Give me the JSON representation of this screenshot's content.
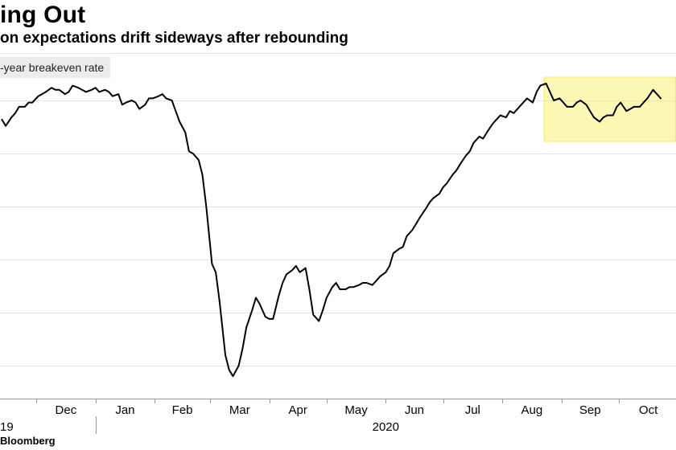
{
  "title": "ing Out",
  "subtitle": "on expectations drift sideways after rebounding",
  "legend": "-year breakeven rate",
  "source": "Bloomberg",
  "chart_data": {
    "type": "line",
    "title": "ing Out",
    "subtitle": "on expectations drift sideways after rebounding",
    "series": [
      {
        "name": "-year breakeven rate",
        "color": "#000000",
        "points": [
          [
            "2019-11-13",
            1.66
          ],
          [
            "2019-11-15",
            1.63
          ],
          [
            "2019-11-18",
            1.67
          ],
          [
            "2019-11-20",
            1.69
          ],
          [
            "2019-11-22",
            1.72
          ],
          [
            "2019-11-25",
            1.72
          ],
          [
            "2019-11-27",
            1.74
          ],
          [
            "2019-11-29",
            1.74
          ],
          [
            "2019-12-02",
            1.77
          ],
          [
            "2019-12-04",
            1.78
          ],
          [
            "2019-12-06",
            1.79
          ],
          [
            "2019-12-09",
            1.81
          ],
          [
            "2019-12-11",
            1.8
          ],
          [
            "2019-12-13",
            1.8
          ],
          [
            "2019-12-16",
            1.78
          ],
          [
            "2019-12-18",
            1.79
          ],
          [
            "2019-12-20",
            1.82
          ],
          [
            "2019-12-23",
            1.81
          ],
          [
            "2019-12-25",
            1.8
          ],
          [
            "2019-12-27",
            1.79
          ],
          [
            "2019-12-30",
            1.8
          ],
          [
            "2020-01-01",
            1.81
          ],
          [
            "2020-01-03",
            1.79
          ],
          [
            "2020-01-06",
            1.8
          ],
          [
            "2020-01-08",
            1.79
          ],
          [
            "2020-01-10",
            1.77
          ],
          [
            "2020-01-13",
            1.78
          ],
          [
            "2020-01-15",
            1.73
          ],
          [
            "2020-01-17",
            1.74
          ],
          [
            "2020-01-20",
            1.75
          ],
          [
            "2020-01-22",
            1.74
          ],
          [
            "2020-01-24",
            1.71
          ],
          [
            "2020-01-27",
            1.73
          ],
          [
            "2020-01-29",
            1.76
          ],
          [
            "2020-01-31",
            1.76
          ],
          [
            "2020-02-03",
            1.77
          ],
          [
            "2020-02-05",
            1.78
          ],
          [
            "2020-02-07",
            1.76
          ],
          [
            "2020-02-10",
            1.75
          ],
          [
            "2020-02-12",
            1.7
          ],
          [
            "2020-02-14",
            1.65
          ],
          [
            "2020-02-17",
            1.6
          ],
          [
            "2020-02-19",
            1.51
          ],
          [
            "2020-02-21",
            1.5
          ],
          [
            "2020-02-24",
            1.47
          ],
          [
            "2020-02-26",
            1.4
          ],
          [
            "2020-02-28",
            1.25
          ],
          [
            "2020-03-02",
            0.98
          ],
          [
            "2020-03-04",
            0.94
          ],
          [
            "2020-03-06",
            0.8
          ],
          [
            "2020-03-09",
            0.55
          ],
          [
            "2020-03-11",
            0.48
          ],
          [
            "2020-03-13",
            0.45
          ],
          [
            "2020-03-16",
            0.5
          ],
          [
            "2020-03-18",
            0.58
          ],
          [
            "2020-03-20",
            0.68
          ],
          [
            "2020-03-23",
            0.76
          ],
          [
            "2020-03-25",
            0.82
          ],
          [
            "2020-03-27",
            0.79
          ],
          [
            "2020-03-30",
            0.73
          ],
          [
            "2020-04-01",
            0.72
          ],
          [
            "2020-04-03",
            0.72
          ],
          [
            "2020-04-06",
            0.83
          ],
          [
            "2020-04-08",
            0.89
          ],
          [
            "2020-04-10",
            0.93
          ],
          [
            "2020-04-13",
            0.95
          ],
          [
            "2020-04-15",
            0.97
          ],
          [
            "2020-04-17",
            0.94
          ],
          [
            "2020-04-20",
            0.96
          ],
          [
            "2020-04-22",
            0.86
          ],
          [
            "2020-04-24",
            0.74
          ],
          [
            "2020-04-27",
            0.71
          ],
          [
            "2020-04-29",
            0.76
          ],
          [
            "2020-05-01",
            0.82
          ],
          [
            "2020-05-04",
            0.87
          ],
          [
            "2020-05-06",
            0.89
          ],
          [
            "2020-05-08",
            0.86
          ],
          [
            "2020-05-11",
            0.86
          ],
          [
            "2020-05-13",
            0.87
          ],
          [
            "2020-05-15",
            0.87
          ],
          [
            "2020-05-18",
            0.88
          ],
          [
            "2020-05-20",
            0.89
          ],
          [
            "2020-05-22",
            0.89
          ],
          [
            "2020-05-25",
            0.88
          ],
          [
            "2020-05-27",
            0.9
          ],
          [
            "2020-05-29",
            0.92
          ],
          [
            "2020-06-01",
            0.94
          ],
          [
            "2020-06-03",
            0.97
          ],
          [
            "2020-06-05",
            1.03
          ],
          [
            "2020-06-08",
            1.05
          ],
          [
            "2020-06-10",
            1.06
          ],
          [
            "2020-06-12",
            1.11
          ],
          [
            "2020-06-15",
            1.14
          ],
          [
            "2020-06-17",
            1.17
          ],
          [
            "2020-06-19",
            1.2
          ],
          [
            "2020-06-22",
            1.24
          ],
          [
            "2020-06-24",
            1.27
          ],
          [
            "2020-06-26",
            1.29
          ],
          [
            "2020-06-29",
            1.31
          ],
          [
            "2020-07-01",
            1.34
          ],
          [
            "2020-07-03",
            1.36
          ],
          [
            "2020-07-06",
            1.4
          ],
          [
            "2020-07-08",
            1.42
          ],
          [
            "2020-07-10",
            1.45
          ],
          [
            "2020-07-13",
            1.49
          ],
          [
            "2020-07-15",
            1.51
          ],
          [
            "2020-07-17",
            1.55
          ],
          [
            "2020-07-20",
            1.58
          ],
          [
            "2020-07-22",
            1.57
          ],
          [
            "2020-07-24",
            1.6
          ],
          [
            "2020-07-27",
            1.64
          ],
          [
            "2020-07-29",
            1.66
          ],
          [
            "2020-07-31",
            1.68
          ],
          [
            "2020-08-03",
            1.67
          ],
          [
            "2020-08-05",
            1.7
          ],
          [
            "2020-08-07",
            1.69
          ],
          [
            "2020-08-10",
            1.72
          ],
          [
            "2020-08-12",
            1.74
          ],
          [
            "2020-08-14",
            1.76
          ],
          [
            "2020-08-17",
            1.74
          ],
          [
            "2020-08-19",
            1.79
          ],
          [
            "2020-08-21",
            1.82
          ],
          [
            "2020-08-24",
            1.83
          ],
          [
            "2020-08-26",
            1.79
          ],
          [
            "2020-08-28",
            1.75
          ],
          [
            "2020-08-31",
            1.76
          ],
          [
            "2020-09-02",
            1.74
          ],
          [
            "2020-09-04",
            1.72
          ],
          [
            "2020-09-07",
            1.72
          ],
          [
            "2020-09-09",
            1.74
          ],
          [
            "2020-09-11",
            1.75
          ],
          [
            "2020-09-14",
            1.73
          ],
          [
            "2020-09-16",
            1.7
          ],
          [
            "2020-09-18",
            1.67
          ],
          [
            "2020-09-21",
            1.65
          ],
          [
            "2020-09-23",
            1.67
          ],
          [
            "2020-09-25",
            1.68
          ],
          [
            "2020-09-28",
            1.68
          ],
          [
            "2020-09-30",
            1.72
          ],
          [
            "2020-10-02",
            1.74
          ],
          [
            "2020-10-05",
            1.7
          ],
          [
            "2020-10-07",
            1.71
          ],
          [
            "2020-10-09",
            1.72
          ],
          [
            "2020-10-12",
            1.72
          ],
          [
            "2020-10-14",
            1.74
          ],
          [
            "2020-10-16",
            1.76
          ],
          [
            "2020-10-19",
            1.8
          ],
          [
            "2020-10-21",
            1.78
          ],
          [
            "2020-10-23",
            1.76
          ]
        ]
      }
    ],
    "x_tick_labels": [
      "Dec",
      "Jan",
      "Feb",
      "Mar",
      "Apr",
      "May",
      "Jun",
      "Jul",
      "Aug",
      "Sep",
      "Oct"
    ],
    "x_year_labels": [
      "19",
      "2020"
    ],
    "highlight": {
      "from": "2020-08-23",
      "to": "2020-10-31",
      "color": "#fbf7b4",
      "border": "#f3e86c"
    },
    "grid": "horizontal",
    "gridline_values": [
      0.5,
      0.75,
      1.0,
      1.25,
      1.5,
      1.75
    ],
    "x_range": [
      "2019-11-12",
      "2020-10-31"
    ],
    "y_range": [
      0.4,
      1.95
    ]
  }
}
